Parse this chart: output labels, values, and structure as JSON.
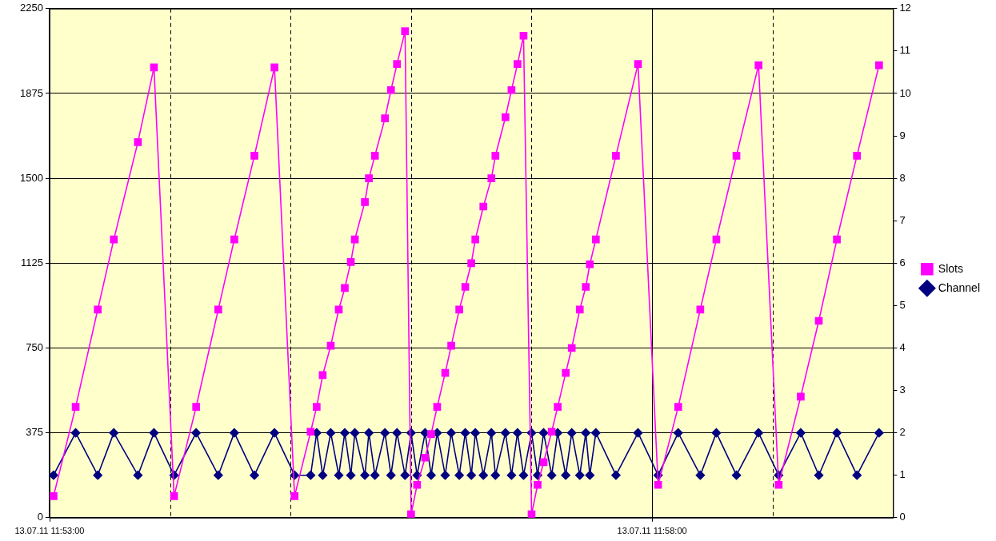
{
  "chart_data": {
    "type": "line",
    "x": [
      "--07-13T11:53:02",
      "--07-13T11:53:13",
      "--07-13T11:53:24",
      "--07-13T11:53:32",
      "--07-13T11:53:44",
      "--07-13T11:53:52",
      "--07-13T11:54:02",
      "--07-13T11:54:13",
      "--07-13T11:54:24",
      "--07-13T11:54:32",
      "--07-13T11:54:42",
      "--07-13T11:54:52",
      "--07-13T11:55:02",
      "--07-13T11:55:10",
      "--07-13T11:55:13",
      "--07-13T11:55:16",
      "--07-13T11:55:20",
      "--07-13T11:55:24",
      "--07-13T11:55:27",
      "--07-13T11:55:30",
      "--07-13T11:55:32",
      "--07-13T11:55:37",
      "--07-13T11:55:39",
      "--07-13T11:55:42",
      "--07-13T11:55:47",
      "--07-13T11:55:50",
      "--07-13T11:55:53",
      "--07-13T11:55:57",
      "--07-13T11:56:00",
      "--07-13T11:56:03",
      "--07-13T11:56:07",
      "--07-13T11:56:10",
      "--07-13T11:56:13",
      "--07-13T11:56:17",
      "--07-13T11:56:20",
      "--07-13T11:56:24",
      "--07-13T11:56:27",
      "--07-13T11:56:30",
      "--07-13T11:56:32",
      "--07-13T11:56:36",
      "--07-13T11:56:40",
      "--07-13T11:56:42",
      "--07-13T11:56:47",
      "--07-13T11:56:50",
      "--07-13T11:56:53",
      "--07-13T11:56:56",
      "--07-13T11:57:00",
      "--07-13T11:57:03",
      "--07-13T11:57:06",
      "--07-13T11:57:10",
      "--07-13T11:57:13",
      "--07-13T11:57:17",
      "--07-13T11:57:20",
      "--07-13T11:57:24",
      "--07-13T11:57:27",
      "--07-13T11:57:29",
      "--07-13T11:57:32",
      "--07-13T11:57:42",
      "--07-13T11:57:53",
      "--07-13T11:58:03",
      "--07-13T11:58:13",
      "--07-13T11:58:24",
      "--07-13T11:58:32",
      "--07-13T11:58:42",
      "--07-13T11:58:53",
      "--07-13T11:59:03",
      "--07-13T11:59:14",
      "--07-13T11:59:23",
      "--07-13T11:59:32",
      "--07-13T11:59:42",
      "--07-13T11:59:53"
    ],
    "series": [
      {
        "name": "Slots",
        "color": "#ff00ff",
        "marker": "square",
        "values": [
          95,
          490,
          920,
          1230,
          1660,
          1990,
          95,
          490,
          920,
          1230,
          1600,
          1990,
          95,
          380,
          490,
          630,
          760,
          920,
          1015,
          1130,
          1230,
          1395,
          1500,
          1600,
          1765,
          1890,
          2005,
          2150,
          15,
          145,
          265,
          370,
          490,
          640,
          760,
          920,
          1020,
          1125,
          1230,
          1375,
          1500,
          1600,
          1770,
          1890,
          2005,
          2130,
          15,
          145,
          245,
          380,
          490,
          640,
          750,
          920,
          1020,
          1120,
          1230,
          1600,
          2005,
          145,
          490,
          920,
          1230,
          1600,
          2000,
          145,
          535,
          870,
          1230,
          1600,
          2000
        ]
      },
      {
        "name": "Channel",
        "color": "#000080",
        "marker": "diamond",
        "axis": "y2",
        "values": [
          1,
          2,
          1,
          2,
          1,
          2,
          1,
          2,
          1,
          2,
          1,
          2,
          1,
          1,
          2,
          1,
          2,
          1,
          2,
          1,
          2,
          1,
          2,
          1,
          2,
          1,
          2,
          1,
          2,
          1,
          2,
          1,
          2,
          1,
          2,
          1,
          2,
          1,
          2,
          1,
          2,
          1,
          2,
          1,
          2,
          1,
          2,
          1,
          2,
          1,
          2,
          1,
          2,
          1,
          2,
          1,
          2,
          1,
          2,
          1,
          2,
          1,
          2,
          1,
          2,
          1,
          2,
          1,
          2,
          1,
          2
        ]
      }
    ],
    "xlim": [
      "--07-13T11:53:00",
      "--07-13T12:00:00"
    ],
    "xticks": [
      {
        "value": "--07-13T11:53:00",
        "label": "13.07.11 11:53:00"
      },
      {
        "value": "--07-13T11:54:00",
        "label": null
      },
      {
        "value": "--07-13T11:55:00",
        "label": null
      },
      {
        "value": "--07-13T11:56:00",
        "label": null
      },
      {
        "value": "--07-13T11:57:00",
        "label": null
      },
      {
        "value": "--07-13T11:58:00",
        "label": "13.07.11 11:58:00"
      },
      {
        "value": "--07-13T11:59:00",
        "label": null
      }
    ],
    "ylim": [
      0,
      2250
    ],
    "yticks": [
      0,
      375,
      750,
      1125,
      1500,
      1875,
      2250
    ],
    "y2lim": [
      0,
      12
    ],
    "y2ticks": [
      0,
      1,
      2,
      3,
      4,
      5,
      6,
      7,
      8,
      9,
      10,
      11,
      12
    ],
    "grid": true,
    "legend": "right",
    "line_style": "solid"
  }
}
